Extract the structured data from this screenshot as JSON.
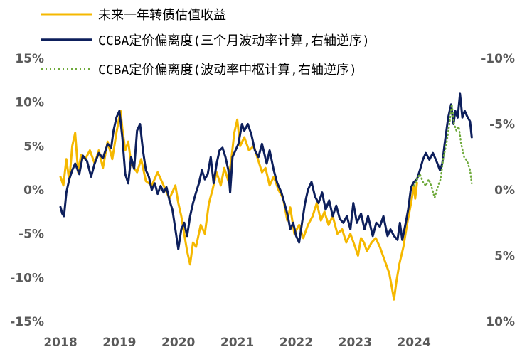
{
  "chart_data": {
    "type": "line",
    "x_axis": {
      "range": [
        2018.0,
        2025.0
      ],
      "ticks": [
        "2018",
        "2019",
        "2020",
        "2021",
        "2022",
        "2023",
        "2024"
      ]
    },
    "y_left": {
      "range": [
        -15,
        15
      ],
      "tick_values": [
        15,
        10,
        5,
        0,
        -5,
        -10,
        -15
      ],
      "tick_labels": [
        "15%",
        "10%",
        "5%",
        "0%",
        "-5%",
        "-10%",
        "-15%"
      ]
    },
    "y_right": {
      "inverted": true,
      "range": [
        -10,
        10
      ],
      "tick_values": [
        -10,
        -5,
        0,
        5,
        10
      ],
      "tick_labels": [
        "-10%",
        "-5%",
        "0%",
        "5%",
        "10%"
      ]
    },
    "grid": false,
    "legend_position": "top-left",
    "series": [
      {
        "name": "未来一年转债估值收益",
        "color": "#F5B800",
        "style": "solid",
        "axis": "left",
        "points": [
          [
            2018.0,
            1.5
          ],
          [
            2018.05,
            0.5
          ],
          [
            2018.1,
            3.5
          ],
          [
            2018.15,
            1.0
          ],
          [
            2018.2,
            5.0
          ],
          [
            2018.25,
            6.5
          ],
          [
            2018.3,
            2.0
          ],
          [
            2018.35,
            4.0
          ],
          [
            2018.42,
            3.5
          ],
          [
            2018.5,
            4.5
          ],
          [
            2018.58,
            3.0
          ],
          [
            2018.65,
            4.5
          ],
          [
            2018.72,
            2.5
          ],
          [
            2018.8,
            5.5
          ],
          [
            2018.88,
            3.5
          ],
          [
            2018.95,
            6.5
          ],
          [
            2019.02,
            9.0
          ],
          [
            2019.05,
            7.0
          ],
          [
            2019.1,
            4.5
          ],
          [
            2019.15,
            5.5
          ],
          [
            2019.2,
            3.0
          ],
          [
            2019.3,
            2.0
          ],
          [
            2019.37,
            3.5
          ],
          [
            2019.45,
            1.0
          ],
          [
            2019.55,
            0.5
          ],
          [
            2019.65,
            2.0
          ],
          [
            2019.75,
            0.5
          ],
          [
            2019.85,
            -1.0
          ],
          [
            2019.95,
            0.5
          ],
          [
            2020.0,
            -1.5
          ],
          [
            2020.05,
            -3.0
          ],
          [
            2020.1,
            -5.0
          ],
          [
            2020.15,
            -7.0
          ],
          [
            2020.2,
            -8.5
          ],
          [
            2020.25,
            -6.0
          ],
          [
            2020.3,
            -6.5
          ],
          [
            2020.38,
            -4.0
          ],
          [
            2020.45,
            -5.0
          ],
          [
            2020.52,
            -1.5
          ],
          [
            2020.58,
            0.0
          ],
          [
            2020.65,
            2.0
          ],
          [
            2020.72,
            0.5
          ],
          [
            2020.78,
            2.5
          ],
          [
            2020.85,
            1.0
          ],
          [
            2020.9,
            3.5
          ],
          [
            2020.95,
            6.5
          ],
          [
            2021.0,
            8.0
          ],
          [
            2021.05,
            5.0
          ],
          [
            2021.12,
            6.0
          ],
          [
            2021.2,
            4.5
          ],
          [
            2021.28,
            5.0
          ],
          [
            2021.35,
            3.5
          ],
          [
            2021.42,
            2.0
          ],
          [
            2021.48,
            2.5
          ],
          [
            2021.55,
            0.5
          ],
          [
            2021.62,
            1.5
          ],
          [
            2021.7,
            0.0
          ],
          [
            2021.78,
            -1.0
          ],
          [
            2021.85,
            -3.5
          ],
          [
            2021.9,
            -2.0
          ],
          [
            2021.97,
            -5.0
          ],
          [
            2022.05,
            -4.0
          ],
          [
            2022.12,
            -5.5
          ],
          [
            2022.2,
            -4.0
          ],
          [
            2022.28,
            -3.0
          ],
          [
            2022.35,
            -1.5
          ],
          [
            2022.42,
            -3.5
          ],
          [
            2022.48,
            -2.5
          ],
          [
            2022.55,
            -4.0
          ],
          [
            2022.62,
            -3.0
          ],
          [
            2022.7,
            -5.0
          ],
          [
            2022.78,
            -4.5
          ],
          [
            2022.85,
            -6.0
          ],
          [
            2022.92,
            -5.0
          ],
          [
            2023.0,
            -6.5
          ],
          [
            2023.05,
            -7.5
          ],
          [
            2023.1,
            -5.5
          ],
          [
            2023.15,
            -6.0
          ],
          [
            2023.2,
            -7.0
          ],
          [
            2023.28,
            -6.0
          ],
          [
            2023.35,
            -5.5
          ],
          [
            2023.42,
            -6.5
          ],
          [
            2023.5,
            -8.0
          ],
          [
            2023.58,
            -9.5
          ],
          [
            2023.62,
            -11.0
          ],
          [
            2023.66,
            -12.5
          ],
          [
            2023.7,
            -10.5
          ],
          [
            2023.75,
            -8.5
          ],
          [
            2023.82,
            -6.5
          ],
          [
            2023.88,
            -4.0
          ],
          [
            2023.95,
            -1.5
          ],
          [
            2024.0,
            0.5
          ],
          [
            2024.02,
            -1.0
          ],
          [
            2024.05,
            0.8
          ]
        ]
      },
      {
        "name": "CCBA定价偏离度(三个月波动率计算,右轴逆序)",
        "color": "#0D1F5C",
        "style": "solid",
        "axis": "right",
        "points": [
          [
            2018.0,
            1.3
          ],
          [
            2018.03,
            1.8
          ],
          [
            2018.06,
            2.0
          ],
          [
            2018.1,
            0.2
          ],
          [
            2018.15,
            -0.8
          ],
          [
            2018.2,
            -1.5
          ],
          [
            2018.25,
            -2.0
          ],
          [
            2018.32,
            -1.2
          ],
          [
            2018.38,
            -2.6
          ],
          [
            2018.45,
            -2.2
          ],
          [
            2018.52,
            -1.0
          ],
          [
            2018.58,
            -2.0
          ],
          [
            2018.65,
            -2.8
          ],
          [
            2018.72,
            -2.4
          ],
          [
            2018.8,
            -3.5
          ],
          [
            2018.86,
            -3.2
          ],
          [
            2018.9,
            -4.5
          ],
          [
            2018.95,
            -5.5
          ],
          [
            2019.0,
            -6.0
          ],
          [
            2019.05,
            -4.0
          ],
          [
            2019.1,
            -1.2
          ],
          [
            2019.15,
            -0.5
          ],
          [
            2019.2,
            -2.5
          ],
          [
            2019.25,
            -1.6
          ],
          [
            2019.3,
            -4.5
          ],
          [
            2019.35,
            -5.0
          ],
          [
            2019.4,
            -3.0
          ],
          [
            2019.45,
            -1.5
          ],
          [
            2019.5,
            -1.0
          ],
          [
            2019.55,
            0.0
          ],
          [
            2019.6,
            -0.5
          ],
          [
            2019.65,
            0.3
          ],
          [
            2019.7,
            -0.3
          ],
          [
            2019.75,
            0.2
          ],
          [
            2019.8,
            -0.2
          ],
          [
            2019.85,
            0.8
          ],
          [
            2019.9,
            1.5
          ],
          [
            2019.95,
            3.0
          ],
          [
            2020.0,
            4.5
          ],
          [
            2020.05,
            3.0
          ],
          [
            2020.1,
            2.5
          ],
          [
            2020.15,
            3.5
          ],
          [
            2020.2,
            2.0
          ],
          [
            2020.25,
            1.0
          ],
          [
            2020.3,
            0.2
          ],
          [
            2020.35,
            -0.5
          ],
          [
            2020.4,
            -1.5
          ],
          [
            2020.45,
            -0.8
          ],
          [
            2020.5,
            -1.2
          ],
          [
            2020.55,
            -2.5
          ],
          [
            2020.6,
            -0.5
          ],
          [
            2020.65,
            -2.0
          ],
          [
            2020.7,
            -3.0
          ],
          [
            2020.75,
            -3.2
          ],
          [
            2020.8,
            -2.5
          ],
          [
            2020.85,
            -1.5
          ],
          [
            2020.88,
            0.2
          ],
          [
            2020.92,
            -2.5
          ],
          [
            2020.97,
            -3.0
          ],
          [
            2021.02,
            -3.5
          ],
          [
            2021.08,
            -5.0
          ],
          [
            2021.12,
            -4.5
          ],
          [
            2021.18,
            -5.0
          ],
          [
            2021.24,
            -4.2
          ],
          [
            2021.3,
            -3.0
          ],
          [
            2021.36,
            -2.5
          ],
          [
            2021.42,
            -3.5
          ],
          [
            2021.5,
            -2.0
          ],
          [
            2021.55,
            -3.0
          ],
          [
            2021.62,
            -1.5
          ],
          [
            2021.68,
            -0.5
          ],
          [
            2021.75,
            0.2
          ],
          [
            2021.8,
            1.0
          ],
          [
            2021.86,
            2.0
          ],
          [
            2021.9,
            3.0
          ],
          [
            2021.95,
            2.5
          ],
          [
            2022.0,
            3.5
          ],
          [
            2022.05,
            4.0
          ],
          [
            2022.1,
            2.5
          ],
          [
            2022.15,
            1.0
          ],
          [
            2022.2,
            0.0
          ],
          [
            2022.26,
            -0.6
          ],
          [
            2022.32,
            0.5
          ],
          [
            2022.38,
            1.0
          ],
          [
            2022.44,
            0.2
          ],
          [
            2022.5,
            1.5
          ],
          [
            2022.56,
            0.8
          ],
          [
            2022.62,
            2.0
          ],
          [
            2022.68,
            1.2
          ],
          [
            2022.74,
            2.2
          ],
          [
            2022.8,
            2.5
          ],
          [
            2022.86,
            2.0
          ],
          [
            2022.92,
            3.0
          ],
          [
            2022.97,
            1.0
          ],
          [
            2023.03,
            2.5
          ],
          [
            2023.1,
            1.8
          ],
          [
            2023.16,
            3.0
          ],
          [
            2023.22,
            2.0
          ],
          [
            2023.3,
            3.5
          ],
          [
            2023.36,
            2.5
          ],
          [
            2023.42,
            2.8
          ],
          [
            2023.48,
            2.0
          ],
          [
            2023.55,
            3.5
          ],
          [
            2023.6,
            3.0
          ],
          [
            2023.66,
            3.5
          ],
          [
            2023.72,
            3.8
          ],
          [
            2023.76,
            2.5
          ],
          [
            2023.8,
            3.8
          ],
          [
            2023.86,
            2.5
          ],
          [
            2023.9,
            1.5
          ],
          [
            2023.95,
            -0.2
          ],
          [
            2024.0,
            -0.6
          ],
          [
            2024.05,
            -0.8
          ],
          [
            2024.1,
            -1.5
          ],
          [
            2024.15,
            -2.3
          ],
          [
            2024.2,
            -2.8
          ],
          [
            2024.26,
            -2.3
          ],
          [
            2024.32,
            -2.8
          ],
          [
            2024.38,
            -2.2
          ],
          [
            2024.44,
            -1.5
          ],
          [
            2024.48,
            -2.0
          ],
          [
            2024.52,
            -3.5
          ],
          [
            2024.58,
            -5.5
          ],
          [
            2024.63,
            -6.5
          ],
          [
            2024.67,
            -5.0
          ],
          [
            2024.7,
            -6.0
          ],
          [
            2024.74,
            -5.5
          ],
          [
            2024.78,
            -7.3
          ],
          [
            2024.82,
            -5.5
          ],
          [
            2024.86,
            -6.0
          ],
          [
            2024.9,
            -5.6
          ],
          [
            2024.95,
            -5.2
          ],
          [
            2024.98,
            -4.0
          ]
        ]
      },
      {
        "name": "CCBA定价偏离度(波动率中枢计算,右轴逆序)",
        "color": "#6FAA3C",
        "style": "dotted",
        "axis": "right",
        "points": [
          [
            2024.0,
            -0.3
          ],
          [
            2024.05,
            -0.8
          ],
          [
            2024.1,
            -1.2
          ],
          [
            2024.15,
            -0.6
          ],
          [
            2024.2,
            -0.3
          ],
          [
            2024.25,
            -0.8
          ],
          [
            2024.3,
            -0.2
          ],
          [
            2024.35,
            0.6
          ],
          [
            2024.4,
            -0.2
          ],
          [
            2024.45,
            -0.8
          ],
          [
            2024.5,
            -2.5
          ],
          [
            2024.55,
            -3.5
          ],
          [
            2024.6,
            -5.0
          ],
          [
            2024.64,
            -6.5
          ],
          [
            2024.68,
            -5.0
          ],
          [
            2024.72,
            -4.5
          ],
          [
            2024.76,
            -4.8
          ],
          [
            2024.8,
            -3.5
          ],
          [
            2024.85,
            -2.5
          ],
          [
            2024.9,
            -2.2
          ],
          [
            2024.95,
            -1.5
          ],
          [
            2024.98,
            -0.5
          ]
        ]
      }
    ]
  }
}
